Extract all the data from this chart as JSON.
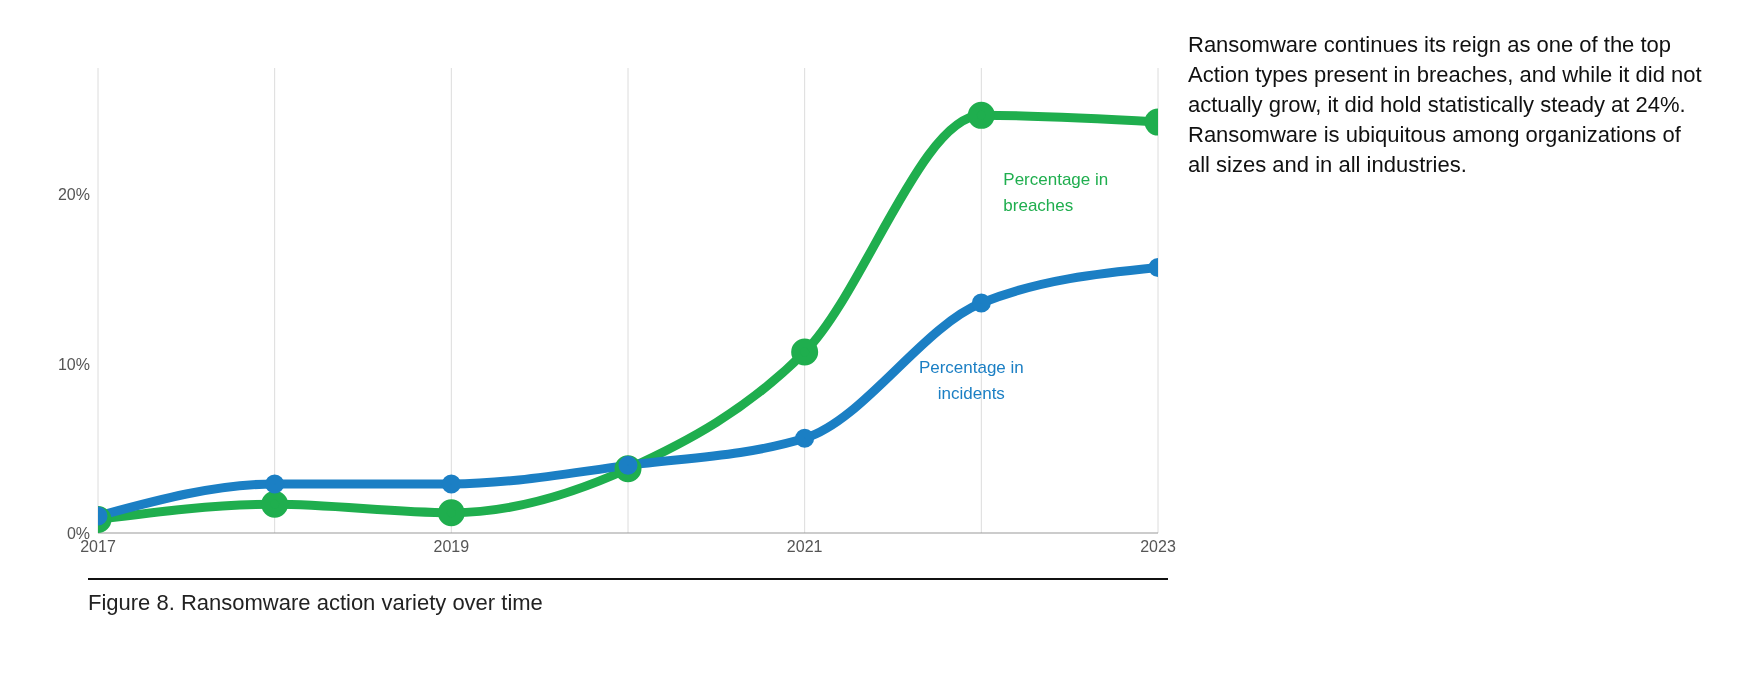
{
  "chart_data": {
    "type": "line",
    "title": "Figure 8. Ransomware action variety over time",
    "x": [
      2017,
      2018,
      2019,
      2020,
      2021,
      2022,
      2023
    ],
    "series": [
      {
        "name": "Percentage in breaches",
        "color": "#1fae4e",
        "values": [
          0.8,
          1.7,
          1.2,
          3.8,
          10.7,
          24.7,
          24.3
        ]
      },
      {
        "name": "Percentage in incidents",
        "color": "#1b7fc4",
        "values": [
          1.0,
          2.9,
          2.9,
          4.0,
          5.6,
          13.6,
          15.7
        ]
      }
    ],
    "xlim": [
      2017,
      2023
    ],
    "xticks": [
      2017,
      {
        "value": 2018,
        "label": null
      },
      2019,
      {
        "value": 2020,
        "label": null
      },
      2021,
      {
        "value": 2022,
        "label": null
      },
      2023
    ],
    "ylim": [
      0,
      27.5
    ],
    "yticks": [
      {
        "value": 0,
        "label": "0%"
      },
      {
        "value": 10,
        "label": "10%"
      },
      {
        "value": 20,
        "label": "20%"
      }
    ],
    "grid": "x",
    "marker": "circle",
    "line_style": "solid",
    "legend": false,
    "annotations": [
      "Ransomware continues its reign as one of the top Action types present in breaches, and while it did not actually grow, it did hold statistically steady at 24%. Ransomware is ubiquitous among organizations of all sizes and in all industries."
    ]
  }
}
